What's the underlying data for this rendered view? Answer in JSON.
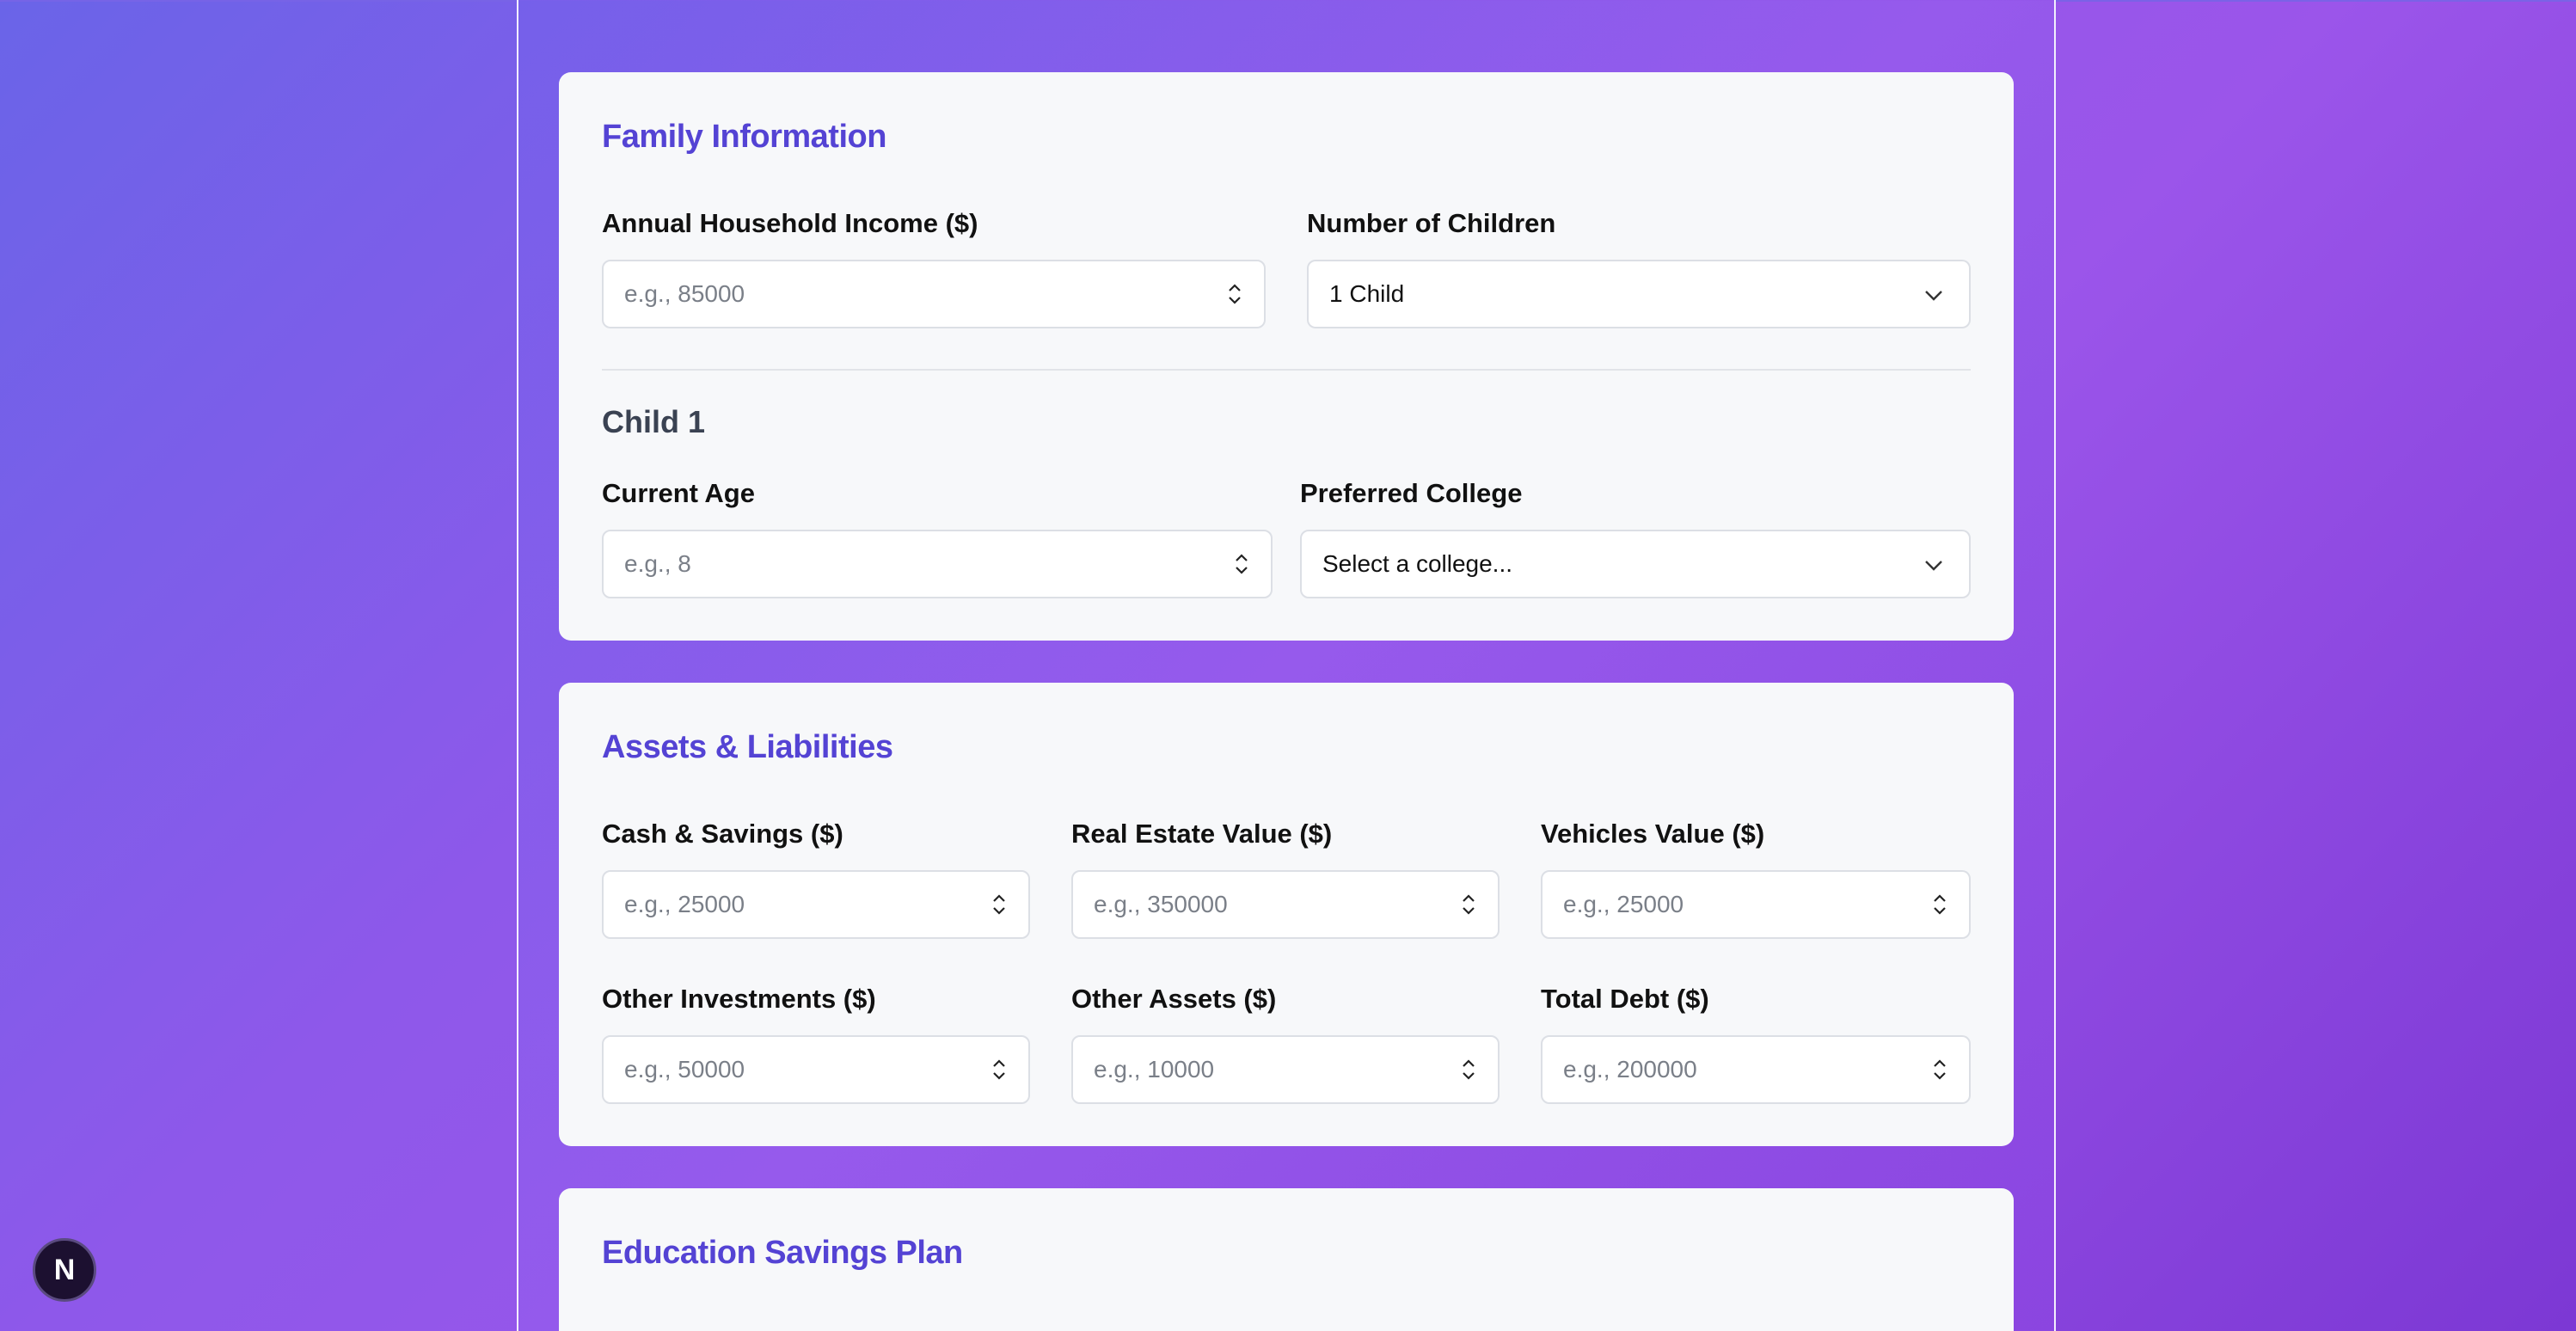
{
  "family": {
    "title": "Family Information",
    "income_label": "Annual Household Income ($)",
    "income_placeholder": "e.g., 85000",
    "children_label": "Number of Children",
    "children_value": "1 Child",
    "child_heading": "Child 1",
    "age_label": "Current Age",
    "age_placeholder": "e.g., 8",
    "college_label": "Preferred College",
    "college_value": "Select a college..."
  },
  "assets": {
    "title": "Assets & Liabilities",
    "fields": [
      {
        "label": "Cash & Savings ($)",
        "placeholder": "e.g., 25000"
      },
      {
        "label": "Real Estate Value ($)",
        "placeholder": "e.g., 350000"
      },
      {
        "label": "Vehicles Value ($)",
        "placeholder": "e.g., 25000"
      },
      {
        "label": "Other Investments ($)",
        "placeholder": "e.g., 50000"
      },
      {
        "label": "Other Assets ($)",
        "placeholder": "e.g., 10000"
      },
      {
        "label": "Total Debt ($)",
        "placeholder": "e.g., 200000"
      }
    ]
  },
  "education": {
    "title": "Education Savings Plan"
  },
  "badge": {
    "letter": "N"
  },
  "colors": {
    "heading": "#5443d4",
    "background_start": "#6a64e8",
    "background_end": "#7c38d4"
  }
}
